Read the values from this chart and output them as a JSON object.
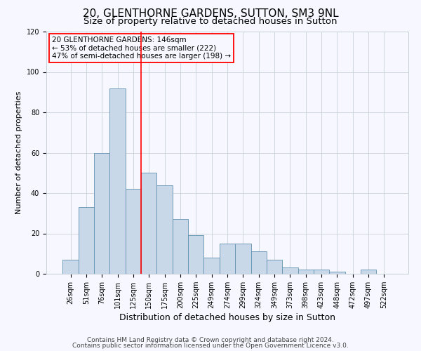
{
  "title": "20, GLENTHORNE GARDENS, SUTTON, SM3 9NL",
  "subtitle": "Size of property relative to detached houses in Sutton",
  "xlabel": "Distribution of detached houses by size in Sutton",
  "ylabel": "Number of detached properties",
  "bar_labels": [
    "26sqm",
    "51sqm",
    "76sqm",
    "101sqm",
    "125sqm",
    "150sqm",
    "175sqm",
    "200sqm",
    "225sqm",
    "249sqm",
    "274sqm",
    "299sqm",
    "324sqm",
    "349sqm",
    "373sqm",
    "398sqm",
    "423sqm",
    "448sqm",
    "472sqm",
    "497sqm",
    "522sqm"
  ],
  "bar_values": [
    7,
    33,
    60,
    92,
    42,
    50,
    44,
    27,
    19,
    8,
    15,
    15,
    11,
    7,
    3,
    2,
    2,
    1,
    0,
    2,
    0
  ],
  "bar_color": "#c8d8e8",
  "bar_edge_color": "#6090b0",
  "vline_x": 4.5,
  "vline_color": "red",
  "ylim": [
    0,
    120
  ],
  "yticks": [
    0,
    20,
    40,
    60,
    80,
    100,
    120
  ],
  "annotation_title": "20 GLENTHORNE GARDENS: 146sqm",
  "annotation_line1": "← 53% of detached houses are smaller (222)",
  "annotation_line2": "47% of semi-detached houses are larger (198) →",
  "footer_line1": "Contains HM Land Registry data © Crown copyright and database right 2024.",
  "footer_line2": "Contains public sector information licensed under the Open Government Licence v3.0.",
  "bg_color": "#f7f7ff",
  "grid_color": "#c8d0da",
  "title_fontsize": 11,
  "subtitle_fontsize": 9.5,
  "xlabel_fontsize": 9,
  "ylabel_fontsize": 8,
  "tick_fontsize": 7,
  "ann_fontsize": 7.5,
  "footer_fontsize": 6.5
}
